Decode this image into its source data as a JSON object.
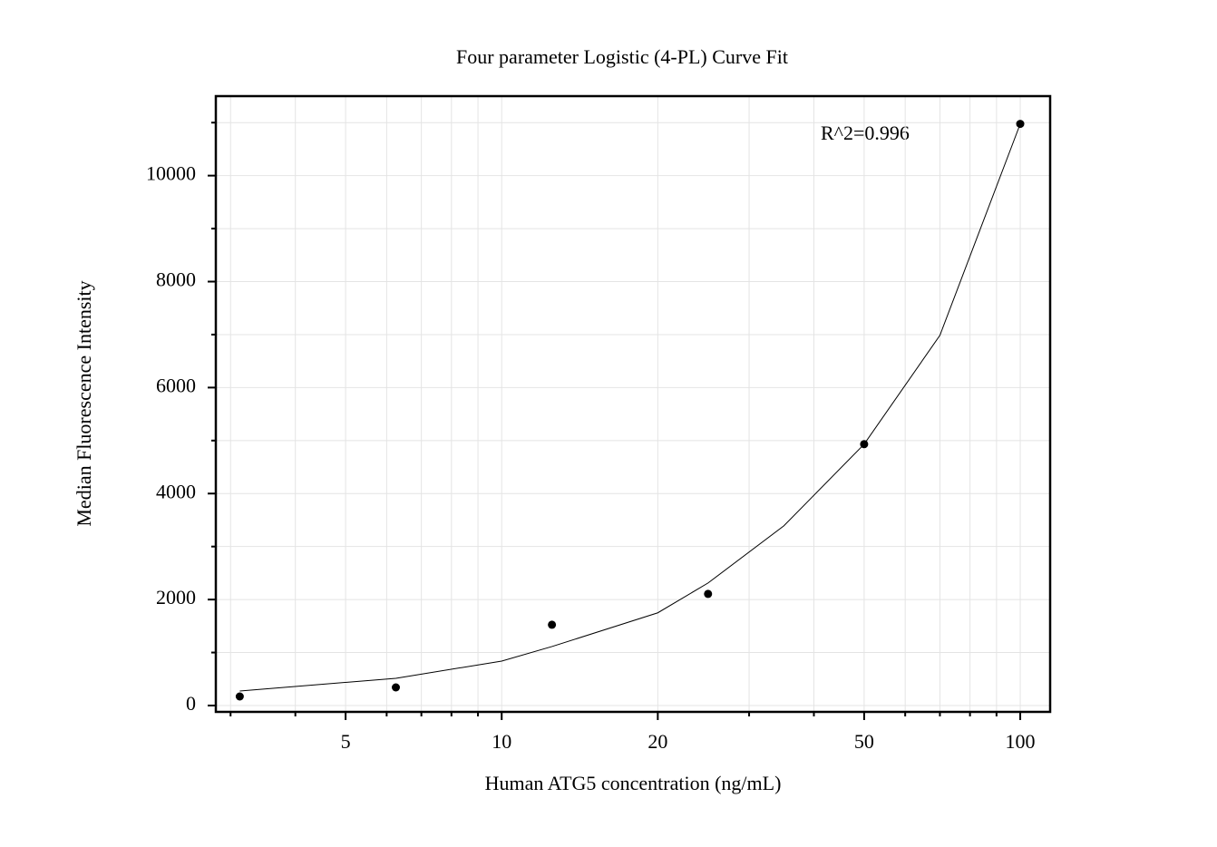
{
  "chart_data": {
    "type": "scatter",
    "title": "Four parameter Logistic (4-PL) Curve Fit",
    "x_label": "Human ATG5 concentration (ng/mL)",
    "y_label": "Median Fluorescence Intensity",
    "annotation": "R^2=0.996",
    "xscale": "log",
    "grid": true,
    "xlim": [
      2.81,
      114.2
    ],
    "ylim": [
      -120,
      11500
    ],
    "xticks": [
      5,
      10,
      20,
      50,
      100
    ],
    "xminor": [
      3,
      4,
      6,
      7,
      8,
      9,
      30,
      40,
      60,
      70,
      80,
      90
    ],
    "yticks": [
      0,
      2000,
      4000,
      6000,
      8000,
      10000
    ],
    "yminor": [
      1000,
      3000,
      5000,
      7000,
      9000,
      11000
    ],
    "series": [
      {
        "mode": "markers",
        "color": "#000000",
        "x": [
          3.125,
          6.25,
          12.5,
          25,
          50,
          100
        ],
        "values": [
          171,
          342,
          1524,
          2106,
          4932,
          10976
        ]
      },
      {
        "mode": "line",
        "color": "#000000",
        "x": [
          3.125,
          6.25,
          10,
          12.5,
          20,
          25,
          35,
          50,
          70,
          100
        ],
        "values": [
          274,
          514,
          839,
          1113,
          1750,
          2312,
          3390,
          4932,
          6986,
          10976
        ]
      }
    ]
  }
}
